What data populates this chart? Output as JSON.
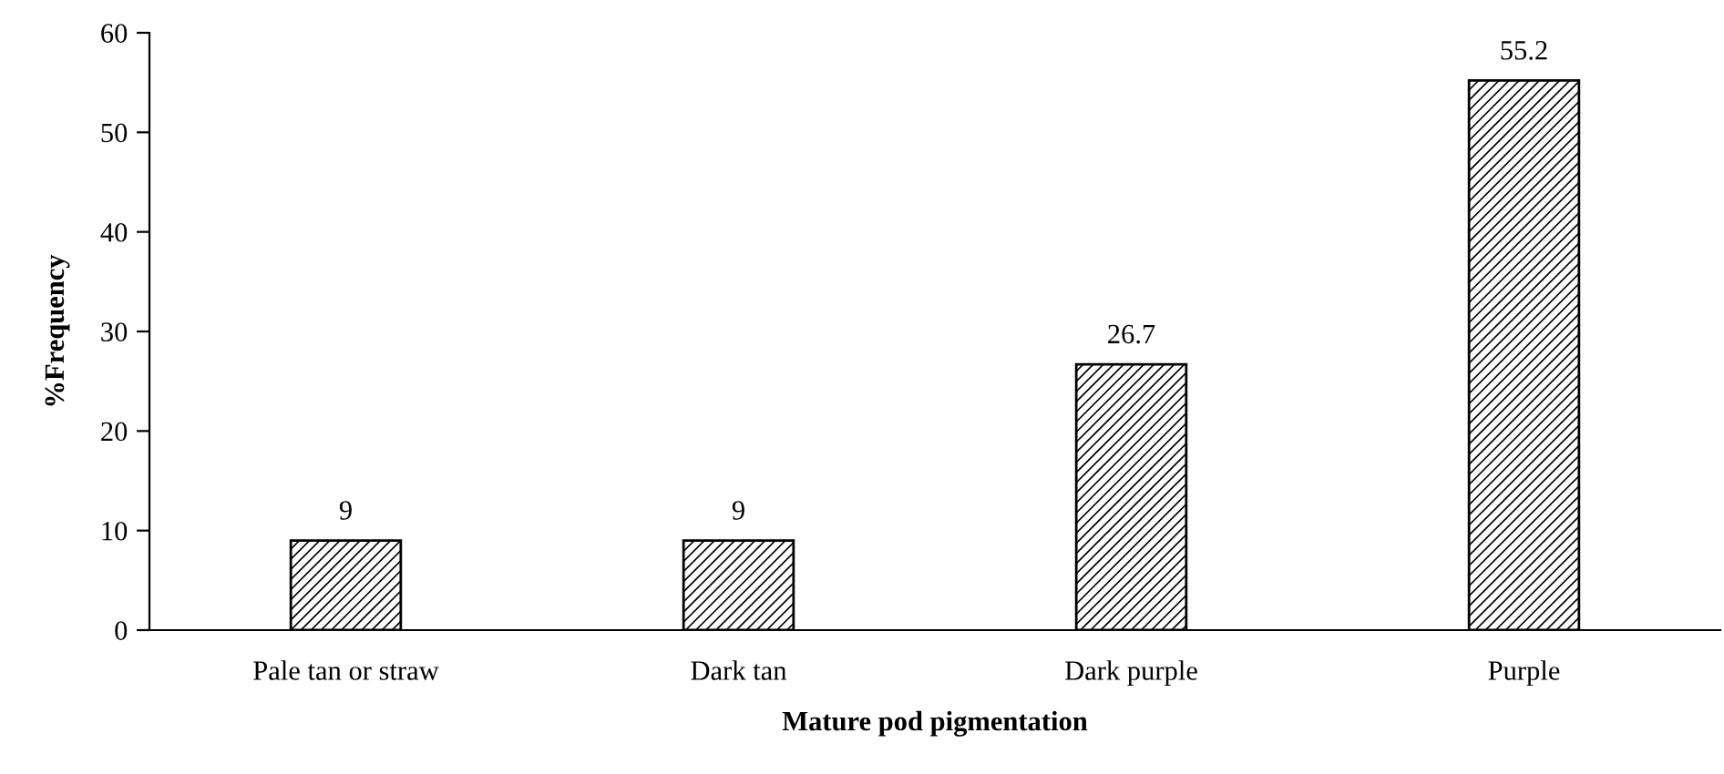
{
  "chart_data": {
    "type": "bar",
    "xlabel": "Mature pod pigmentation",
    "ylabel": "%Frequency",
    "categories": [
      "Pale tan or straw",
      "Dark tan",
      "Dark purple",
      "Purple"
    ],
    "values": [
      9,
      9,
      26.7,
      55.2
    ],
    "color": "#000000",
    "ylim": [
      0,
      60
    ],
    "yticks": [
      0,
      10,
      20,
      30,
      40,
      50,
      60
    ],
    "data_labels": true,
    "grid": false,
    "legend": false
  }
}
